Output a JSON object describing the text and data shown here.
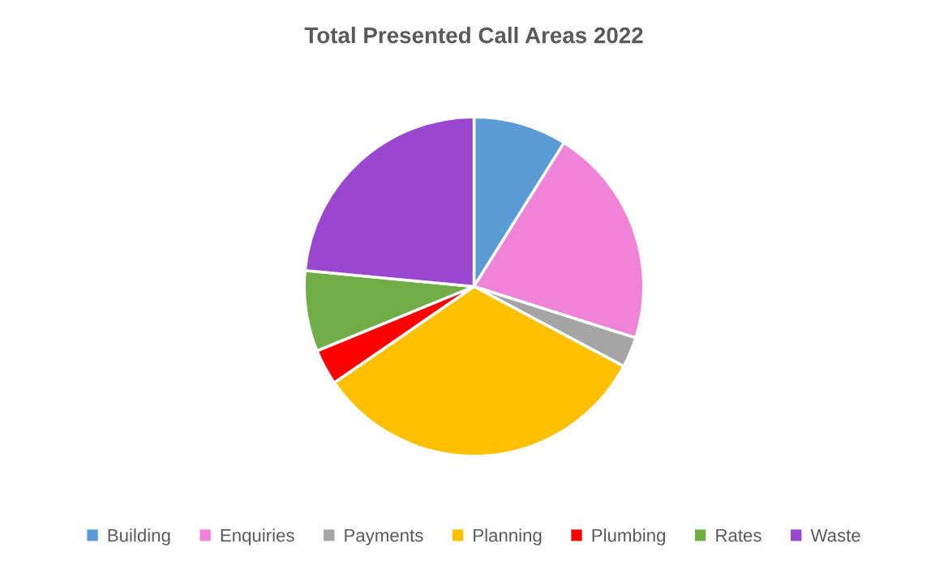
{
  "chart_data": {
    "type": "pie",
    "title": "Total Presented Call Areas 2022",
    "categories": [
      "Building",
      "Enquiries",
      "Payments",
      "Planning",
      "Plumbing",
      "Rates",
      "Waste"
    ],
    "values": [
      8.9,
      21.0,
      2.9,
      32.6,
      3.4,
      7.7,
      23.5
    ],
    "colors": [
      "#5b9bd5",
      "#f082d8",
      "#a5a5a5",
      "#ffc000",
      "#ff0000",
      "#70ad47",
      "#9b46d1"
    ],
    "legend": "bottom"
  }
}
